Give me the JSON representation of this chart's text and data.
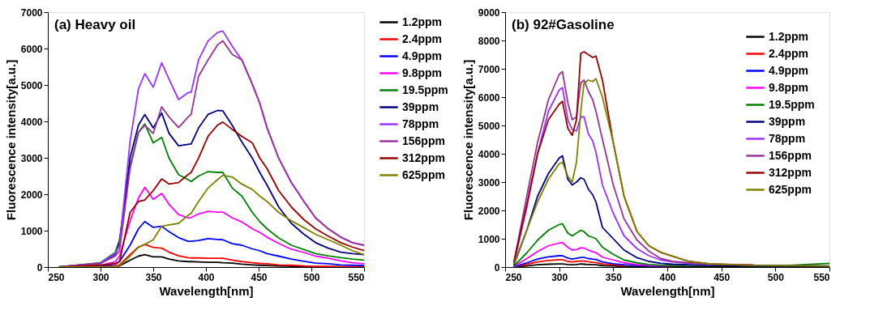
{
  "chart_data": [
    {
      "type": "line",
      "title": "(a)  Heavy oil",
      "xlabel": "Wavelength[nm]",
      "ylabel": "Fluorescence intensity[a.u.]",
      "xlim": [
        250,
        550
      ],
      "xticks": [
        250,
        300,
        350,
        400,
        450,
        500,
        550
      ],
      "ylim": [
        0,
        7000
      ],
      "yticks": [
        0,
        1000,
        2000,
        3000,
        4000,
        5000,
        6000,
        7000
      ],
      "legend": "right",
      "x": [
        260,
        300,
        314,
        318,
        328,
        336,
        342,
        350,
        358,
        365,
        374,
        383,
        386,
        393,
        402,
        411,
        416,
        425,
        434,
        444,
        451,
        458,
        469,
        481,
        493,
        504,
        516,
        528,
        539,
        550
      ],
      "series": [
        {
          "name": "1.2ppm",
          "color": "#000000",
          "values": [
            0,
            0,
            20,
            30,
            190,
            300,
            340,
            280,
            280,
            220,
            170,
            150,
            150,
            140,
            130,
            130,
            120,
            110,
            80,
            60,
            50,
            40,
            30,
            20,
            20,
            10,
            10,
            10,
            10,
            10
          ]
        },
        {
          "name": "2.4ppm",
          "color": "#ff0000",
          "values": [
            0,
            10,
            30,
            60,
            340,
            550,
            620,
            540,
            520,
            410,
            310,
            260,
            250,
            250,
            240,
            240,
            240,
            190,
            150,
            120,
            100,
            90,
            60,
            50,
            30,
            20,
            20,
            10,
            10,
            10
          ]
        },
        {
          "name": "4.9ppm",
          "color": "#0000ff",
          "values": [
            0,
            30,
            80,
            150,
            600,
            1050,
            1250,
            1090,
            1120,
            970,
            810,
            710,
            710,
            730,
            780,
            760,
            750,
            640,
            600,
            500,
            450,
            370,
            300,
            220,
            160,
            110,
            90,
            60,
            50,
            40
          ]
        },
        {
          "name": "9.8ppm",
          "color": "#ff00ff",
          "values": [
            0,
            50,
            150,
            300,
            1270,
            1900,
            2190,
            1860,
            2020,
            1720,
            1440,
            1350,
            1360,
            1460,
            1530,
            1510,
            1510,
            1350,
            1240,
            1050,
            950,
            820,
            650,
            490,
            400,
            300,
            240,
            170,
            120,
            90
          ]
        },
        {
          "name": "19.5ppm",
          "color": "#008000",
          "values": [
            0,
            120,
            400,
            750,
            2770,
            3700,
            3930,
            3410,
            3560,
            2990,
            2540,
            2400,
            2350,
            2500,
            2620,
            2600,
            2600,
            2170,
            1950,
            1500,
            1250,
            1050,
            800,
            600,
            480,
            370,
            310,
            260,
            220,
            190
          ]
        },
        {
          "name": "39ppm",
          "color": "#000080",
          "values": [
            0,
            100,
            350,
            670,
            3000,
            3900,
            4190,
            3820,
            4230,
            3670,
            3330,
            3370,
            3380,
            3820,
            4190,
            4300,
            4290,
            3890,
            3440,
            2990,
            2600,
            2250,
            1650,
            1200,
            900,
            670,
            520,
            410,
            370,
            340
          ]
        },
        {
          "name": "78ppm",
          "color": "#9933ff",
          "values": [
            0,
            110,
            370,
            600,
            3440,
            4900,
            5310,
            4940,
            5610,
            5160,
            4600,
            4790,
            4800,
            5690,
            6210,
            6440,
            6480,
            6060,
            5690,
            5020,
            4500,
            3820,
            2990,
            2320,
            1800,
            1350,
            1050,
            820,
            670,
            600
          ]
        },
        {
          "name": "156ppm",
          "color": "#993399",
          "values": [
            0,
            100,
            300,
            450,
            2700,
            3700,
            3890,
            3670,
            4400,
            4120,
            3830,
            4120,
            4200,
            5240,
            5690,
            6100,
            6210,
            5840,
            5690,
            5020,
            4500,
            3820,
            2990,
            2320,
            1800,
            1350,
            1050,
            820,
            670,
            600
          ]
        },
        {
          "name": "312ppm",
          "color": "#990000",
          "values": [
            0,
            50,
            100,
            150,
            1500,
            1800,
            1840,
            2100,
            2420,
            2280,
            2320,
            2540,
            2600,
            2990,
            3590,
            3900,
            3980,
            3780,
            3590,
            3410,
            3000,
            2700,
            2100,
            1650,
            1300,
            1050,
            850,
            670,
            550,
            450
          ]
        },
        {
          "name": "625ppm",
          "color": "#808000",
          "values": [
            0,
            0,
            10,
            30,
            300,
            540,
            620,
            750,
            1120,
            1160,
            1200,
            1420,
            1480,
            1800,
            2170,
            2400,
            2520,
            2470,
            2280,
            2130,
            1950,
            1800,
            1500,
            1270,
            1080,
            900,
            750,
            600,
            450,
            340
          ]
        }
      ]
    },
    {
      "type": "line",
      "title": "(b)  92#Gasoline",
      "xlabel": "Wavelength[nm]",
      "ylabel": "Fluorescence intensity[a.u.]",
      "xlim": [
        250,
        550
      ],
      "xticks": [
        250,
        300,
        350,
        400,
        450,
        500,
        550
      ],
      "ylim": [
        0,
        9000
      ],
      "yticks": [
        0,
        1000,
        2000,
        3000,
        4000,
        5000,
        6000,
        7000,
        8000,
        9000
      ],
      "legend": "top right",
      "x": [
        258,
        270,
        280,
        290,
        300,
        303,
        308,
        312,
        316,
        320,
        323,
        327,
        331,
        334,
        340,
        350,
        360,
        372,
        383,
        394,
        405,
        420,
        440,
        480,
        510,
        550
      ],
      "series": [
        {
          "name": "1.2ppm",
          "color": "#000000",
          "values": [
            0,
            40,
            80,
            100,
            110,
            110,
            90,
            80,
            90,
            110,
            100,
            90,
            80,
            80,
            50,
            40,
            20,
            20,
            10,
            10,
            10,
            10,
            10,
            10,
            10,
            10
          ]
        },
        {
          "name": "2.4ppm",
          "color": "#ff0000",
          "values": [
            10,
            100,
            180,
            230,
            260,
            260,
            200,
            180,
            200,
            220,
            210,
            190,
            170,
            160,
            110,
            80,
            50,
            null,
            null,
            null,
            null,
            null,
            null,
            null,
            null,
            null
          ]
        },
        {
          "name": "4.9ppm",
          "color": "#0000ff",
          "values": [
            10,
            150,
            280,
            360,
            400,
            400,
            320,
            280,
            310,
            340,
            340,
            300,
            280,
            270,
            180,
            120,
            80,
            60,
            40,
            40,
            null,
            null,
            null,
            null,
            null,
            null
          ]
        },
        {
          "name": "9.8ppm",
          "color": "#ff00ff",
          "values": [
            20,
            300,
            550,
            750,
            850,
            860,
            700,
            600,
            620,
            680,
            670,
            600,
            540,
            510,
            350,
            250,
            150,
            90,
            60,
            50,
            50,
            null,
            null,
            null,
            null,
            null
          ]
        },
        {
          "name": "19.5ppm",
          "color": "#008000",
          "values": [
            30,
            500,
            950,
            1300,
            1500,
            1530,
            1200,
            1100,
            1200,
            1300,
            1250,
            1100,
            1050,
            1000,
            700,
            450,
            250,
            150,
            90,
            70,
            60,
            60,
            60,
            50,
            50,
            130
          ]
        },
        {
          "name": "39ppm",
          "color": "#000080",
          "values": [
            60,
            1300,
            2500,
            3300,
            3850,
            3930,
            3100,
            2900,
            3000,
            3150,
            3100,
            2750,
            2550,
            2300,
            1400,
            1000,
            600,
            330,
            200,
            130,
            100,
            80,
            60,
            50,
            50,
            40
          ]
        },
        {
          "name": "78ppm",
          "color": "#9933ff",
          "values": [
            110,
            2100,
            4000,
            5500,
            6250,
            6340,
            5200,
            4850,
            4800,
            5300,
            5300,
            4700,
            4450,
            4050,
            2900,
            1900,
            1100,
            650,
            400,
            250,
            180,
            130,
            90,
            null,
            null,
            null
          ]
        },
        {
          "name": "156ppm",
          "color": "#993399",
          "values": [
            150,
            2500,
            4400,
            5900,
            6800,
            6900,
            5800,
            5200,
            5300,
            6500,
            6600,
            6200,
            5900,
            5500,
            4500,
            2900,
            1700,
            950,
            560,
            300,
            200,
            150,
            100,
            80,
            null,
            null
          ]
        },
        {
          "name": "312ppm",
          "color": "#990000",
          "values": [
            150,
            2200,
            4000,
            5200,
            5750,
            5850,
            4900,
            4650,
            5200,
            7550,
            7600,
            7500,
            7400,
            7450,
            6600,
            4400,
            2500,
            1250,
            750,
            520,
            380,
            200,
            110,
            60,
            null,
            null
          ]
        },
        {
          "name": "625ppm",
          "color": "#808000",
          "values": [
            100,
            1300,
            2300,
            3100,
            3650,
            3700,
            3200,
            3000,
            3700,
            5500,
            6500,
            6600,
            6550,
            6650,
            6000,
            4400,
            2500,
            1250,
            750,
            520,
            380,
            200,
            110,
            60,
            50,
            40
          ]
        }
      ]
    }
  ]
}
